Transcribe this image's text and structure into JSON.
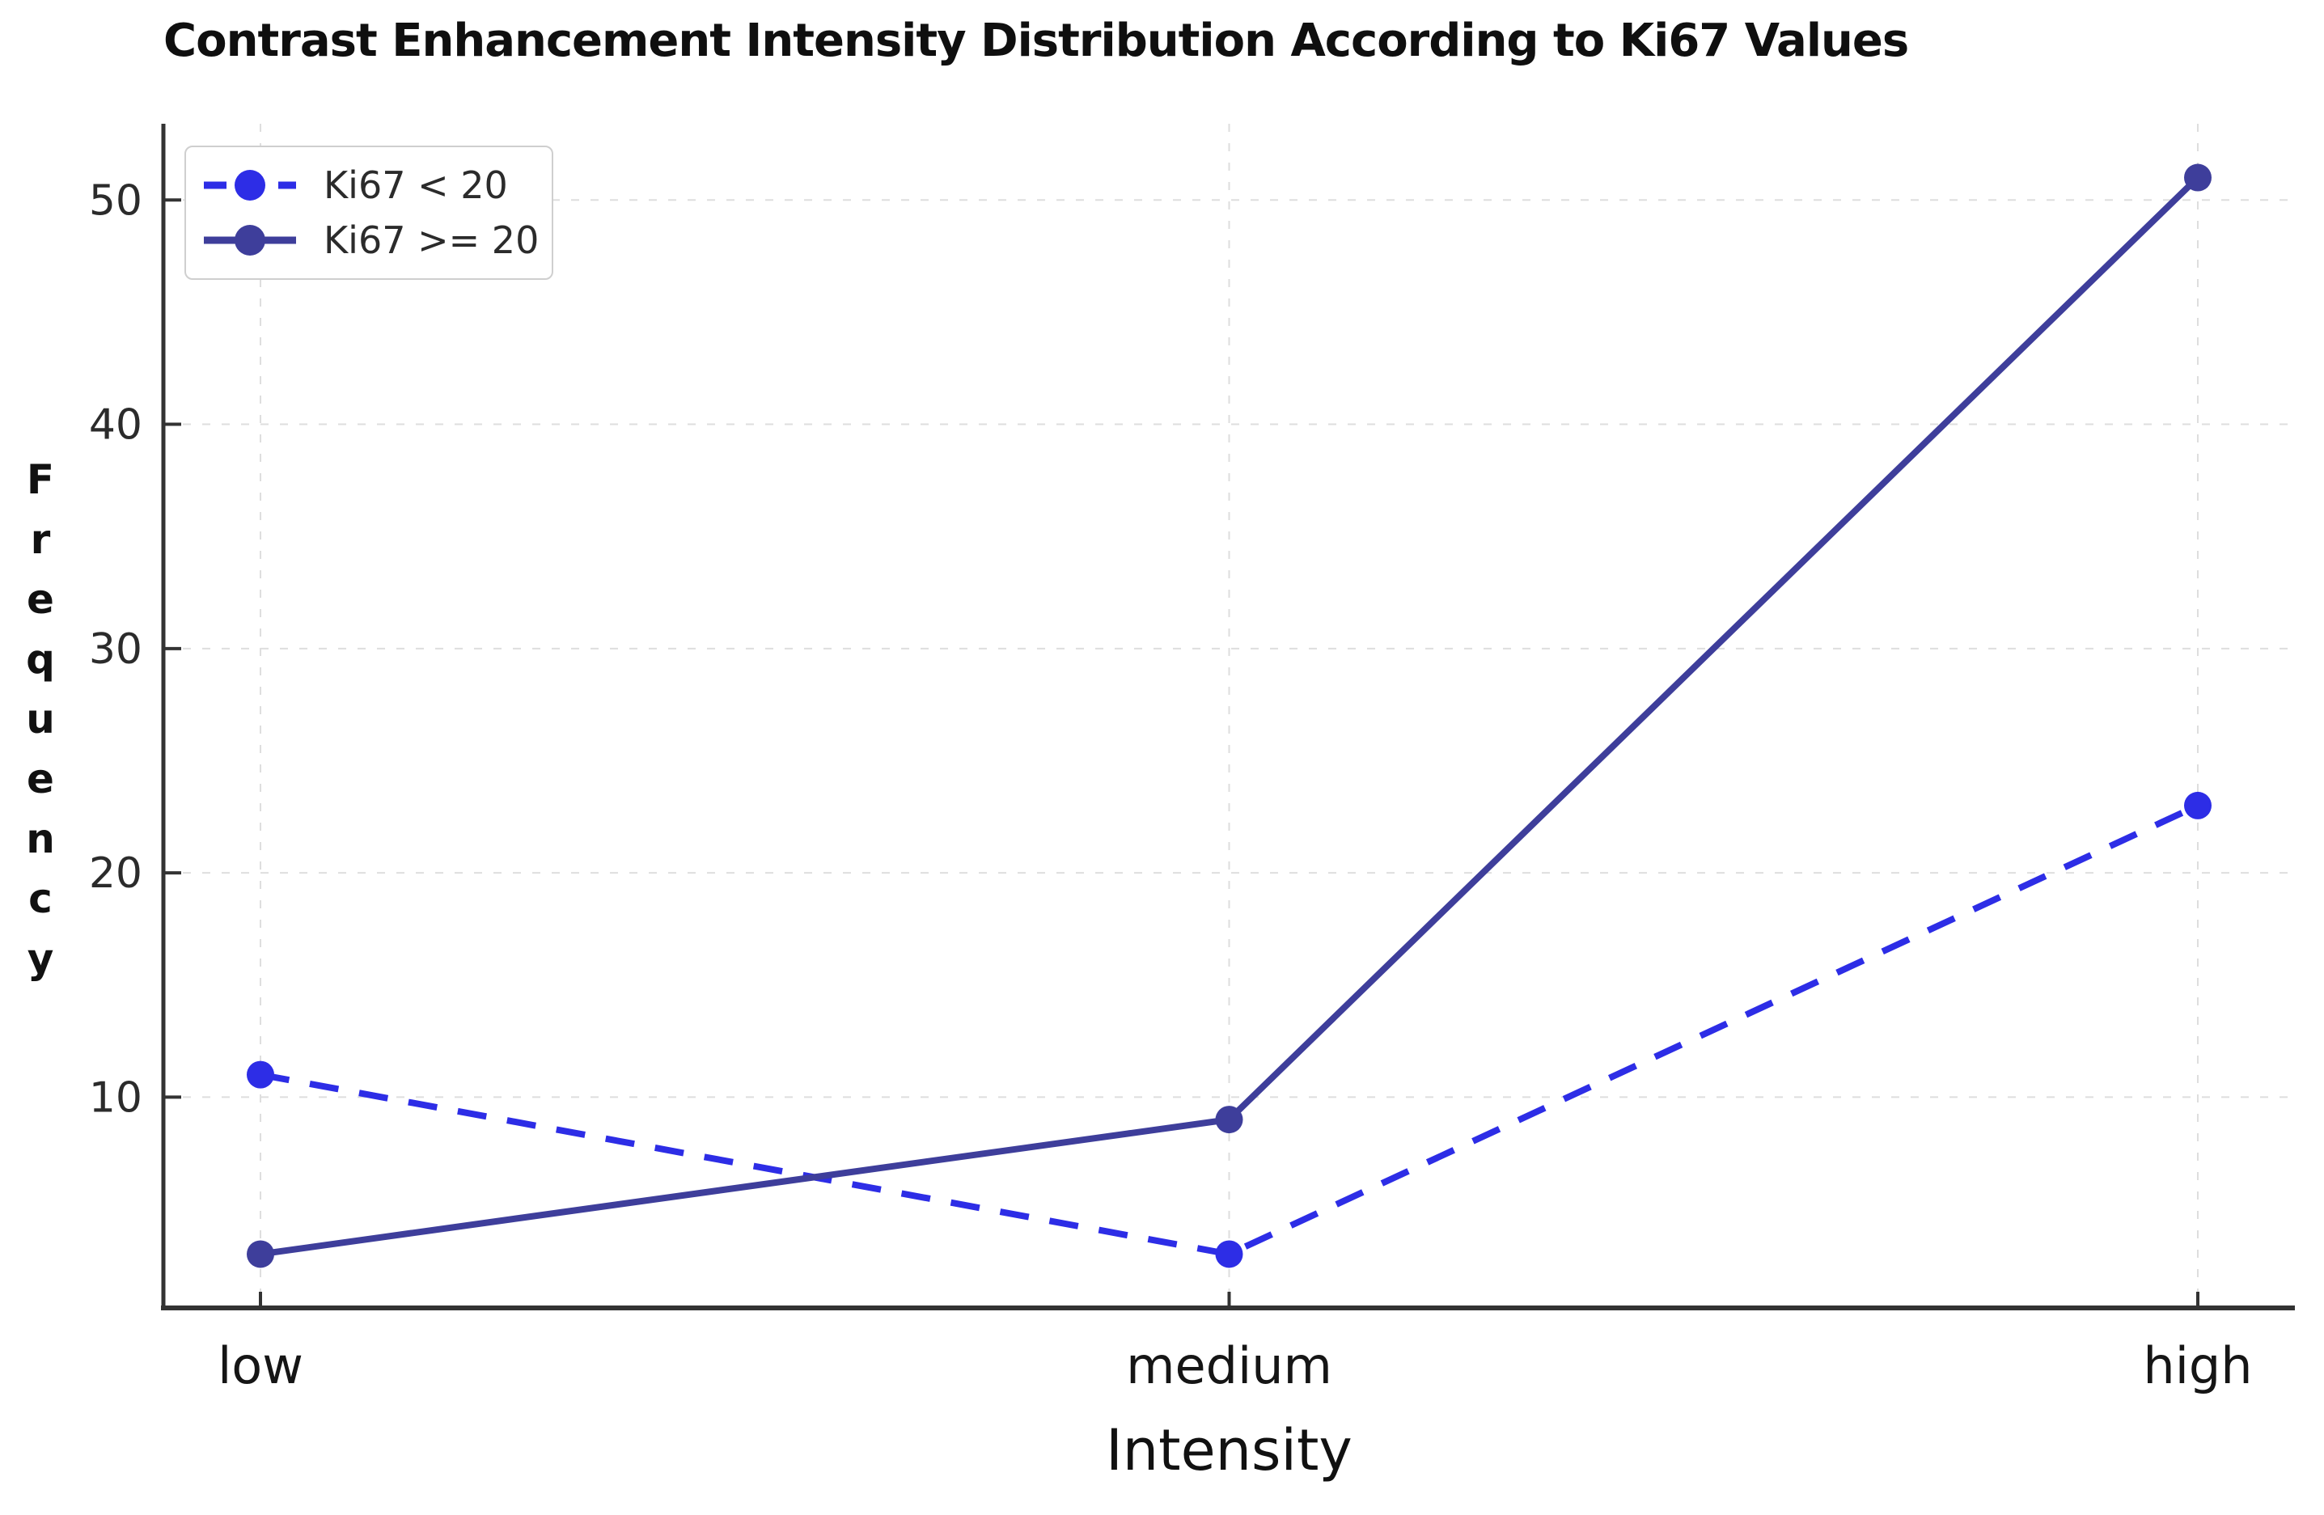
{
  "figure": {
    "title": "Contrast Enhancement Intensity Distribution According to Ki67 Values"
  },
  "chart_data": {
    "type": "line",
    "title": "Contrast Enhancement Intensity Distribution According to Ki67 Values",
    "categories": [
      "low",
      "medium",
      "high"
    ],
    "series": [
      {
        "name": "Ki67 < 20",
        "values": [
          11,
          3,
          23
        ],
        "color": "#2d2de6",
        "line_style": "dashed",
        "marker": "circle"
      },
      {
        "name": "Ki67 >= 20",
        "values": [
          3,
          9,
          51
        ],
        "color": "#3e3e9b",
        "line_style": "solid",
        "marker": "circle"
      }
    ],
    "xlabel": "Intensity",
    "ylabel": "Frequency",
    "yticks": [
      10,
      20,
      30,
      40,
      50
    ],
    "ylim": [
      0.6,
      53.4
    ],
    "grid": true,
    "grid_style": "dashed",
    "grid_color": "#dedede",
    "axis_color": "#333333",
    "tick_label_color": "#2b2b2b",
    "legend_position": "upper left",
    "background": "#ffffff"
  }
}
